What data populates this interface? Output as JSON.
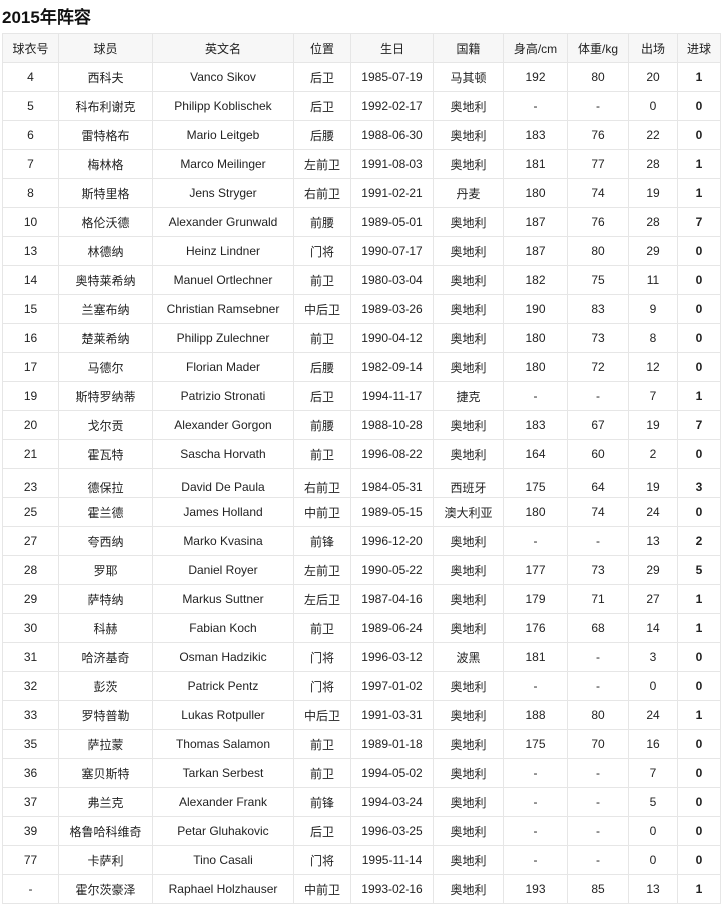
{
  "title": "2015年阵容",
  "columns": [
    "球衣号",
    "球员",
    "英文名",
    "位置",
    "生日",
    "国籍",
    "身高/cm",
    "体重/kg",
    "出场",
    "进球"
  ],
  "rows": [
    [
      "4",
      "西科夫",
      "Vanco Sikov",
      "后卫",
      "1985-07-19",
      "马其顿",
      "192",
      "80",
      "20",
      "1"
    ],
    [
      "5",
      "科布利谢克",
      "Philipp Koblischek",
      "后卫",
      "1992-02-17",
      "奥地利",
      "-",
      "-",
      "0",
      "0"
    ],
    [
      "6",
      "雷特格布",
      "Mario Leitgeb",
      "后腰",
      "1988-06-30",
      "奥地利",
      "183",
      "76",
      "22",
      "0"
    ],
    [
      "7",
      "梅林格",
      "Marco Meilinger",
      "左前卫",
      "1991-08-03",
      "奥地利",
      "181",
      "77",
      "28",
      "1"
    ],
    [
      "8",
      "斯特里格",
      "Jens Stryger",
      "右前卫",
      "1991-02-21",
      "丹麦",
      "180",
      "74",
      "19",
      "1"
    ],
    [
      "10",
      "格伦沃德",
      "Alexander Grunwald",
      "前腰",
      "1989-05-01",
      "奥地利",
      "187",
      "76",
      "28",
      "7"
    ],
    [
      "13",
      "林德纳",
      "Heinz Lindner",
      "门将",
      "1990-07-17",
      "奥地利",
      "187",
      "80",
      "29",
      "0"
    ],
    [
      "14",
      "奥特莱希纳",
      "Manuel Ortlechner",
      "前卫",
      "1980-03-04",
      "奥地利",
      "182",
      "75",
      "11",
      "0"
    ],
    [
      "15",
      "兰塞布纳",
      "Christian Ramsebner",
      "中后卫",
      "1989-03-26",
      "奥地利",
      "190",
      "83",
      "9",
      "0"
    ],
    [
      "16",
      "楚莱希纳",
      "Philipp Zulechner",
      "前卫",
      "1990-04-12",
      "奥地利",
      "180",
      "73",
      "8",
      "0"
    ],
    [
      "17",
      "马德尔",
      "Florian Mader",
      "后腰",
      "1982-09-14",
      "奥地利",
      "180",
      "72",
      "12",
      "0"
    ],
    [
      "19",
      "斯特罗纳蒂",
      "Patrizio Stronati",
      "后卫",
      "1994-11-17",
      "捷克",
      "-",
      "-",
      "7",
      "1"
    ],
    [
      "20",
      "戈尔贡",
      "Alexander Gorgon",
      "前腰",
      "1988-10-28",
      "奥地利",
      "183",
      "67",
      "19",
      "7"
    ],
    [
      "21",
      "霍瓦特",
      "Sascha Horvath",
      "前卫",
      "1996-08-22",
      "奥地利",
      "164",
      "60",
      "2",
      "0"
    ],
    [
      "23",
      "德保拉",
      "David De Paula",
      "右前卫",
      "1984-05-31",
      "西班牙",
      "175",
      "64",
      "19",
      "3"
    ],
    [
      "25",
      "霍兰德",
      "James Holland",
      "中前卫",
      "1989-05-15",
      "澳大利亚",
      "180",
      "74",
      "24",
      "0"
    ],
    [
      "27",
      "夸西纳",
      "Marko Kvasina",
      "前锋",
      "1996-12-20",
      "奥地利",
      "-",
      "-",
      "13",
      "2"
    ],
    [
      "28",
      "罗耶",
      "Daniel Royer",
      "左前卫",
      "1990-05-22",
      "奥地利",
      "177",
      "73",
      "29",
      "5"
    ],
    [
      "29",
      "萨特纳",
      "Markus Suttner",
      "左后卫",
      "1987-04-16",
      "奥地利",
      "179",
      "71",
      "27",
      "1"
    ],
    [
      "30",
      "科赫",
      "Fabian Koch",
      "前卫",
      "1989-06-24",
      "奥地利",
      "176",
      "68",
      "14",
      "1"
    ],
    [
      "31",
      "哈济基奇",
      "Osman Hadzikic",
      "门将",
      "1996-03-12",
      "波黑",
      "181",
      "-",
      "3",
      "0"
    ],
    [
      "32",
      "彭茨",
      "Patrick Pentz",
      "门将",
      "1997-01-02",
      "奥地利",
      "-",
      "-",
      "0",
      "0"
    ],
    [
      "33",
      "罗特普勒",
      "Lukas Rotpuller",
      "中后卫",
      "1991-03-31",
      "奥地利",
      "188",
      "80",
      "24",
      "1"
    ],
    [
      "35",
      "萨拉蒙",
      "Thomas Salamon",
      "前卫",
      "1989-01-18",
      "奥地利",
      "175",
      "70",
      "16",
      "0"
    ],
    [
      "36",
      "塞贝斯特",
      "Tarkan Serbest",
      "前卫",
      "1994-05-02",
      "奥地利",
      "-",
      "-",
      "7",
      "0"
    ],
    [
      "37",
      "弗兰克",
      "Alexander Frank",
      "前锋",
      "1994-03-24",
      "奥地利",
      "-",
      "-",
      "5",
      "0"
    ],
    [
      "39",
      "格鲁哈科维奇",
      "Petar Gluhakovic",
      "后卫",
      "1996-03-25",
      "奥地利",
      "-",
      "-",
      "0",
      "0"
    ],
    [
      "77",
      "卡萨利",
      "Tino Casali",
      "门将",
      "1995-11-14",
      "奥地利",
      "-",
      "-",
      "0",
      "0"
    ],
    [
      "-",
      "霍尔茨豪泽",
      "Raphael Holzhauser",
      "中前卫",
      "1993-02-16",
      "奥地利",
      "193",
      "85",
      "13",
      "1"
    ]
  ]
}
